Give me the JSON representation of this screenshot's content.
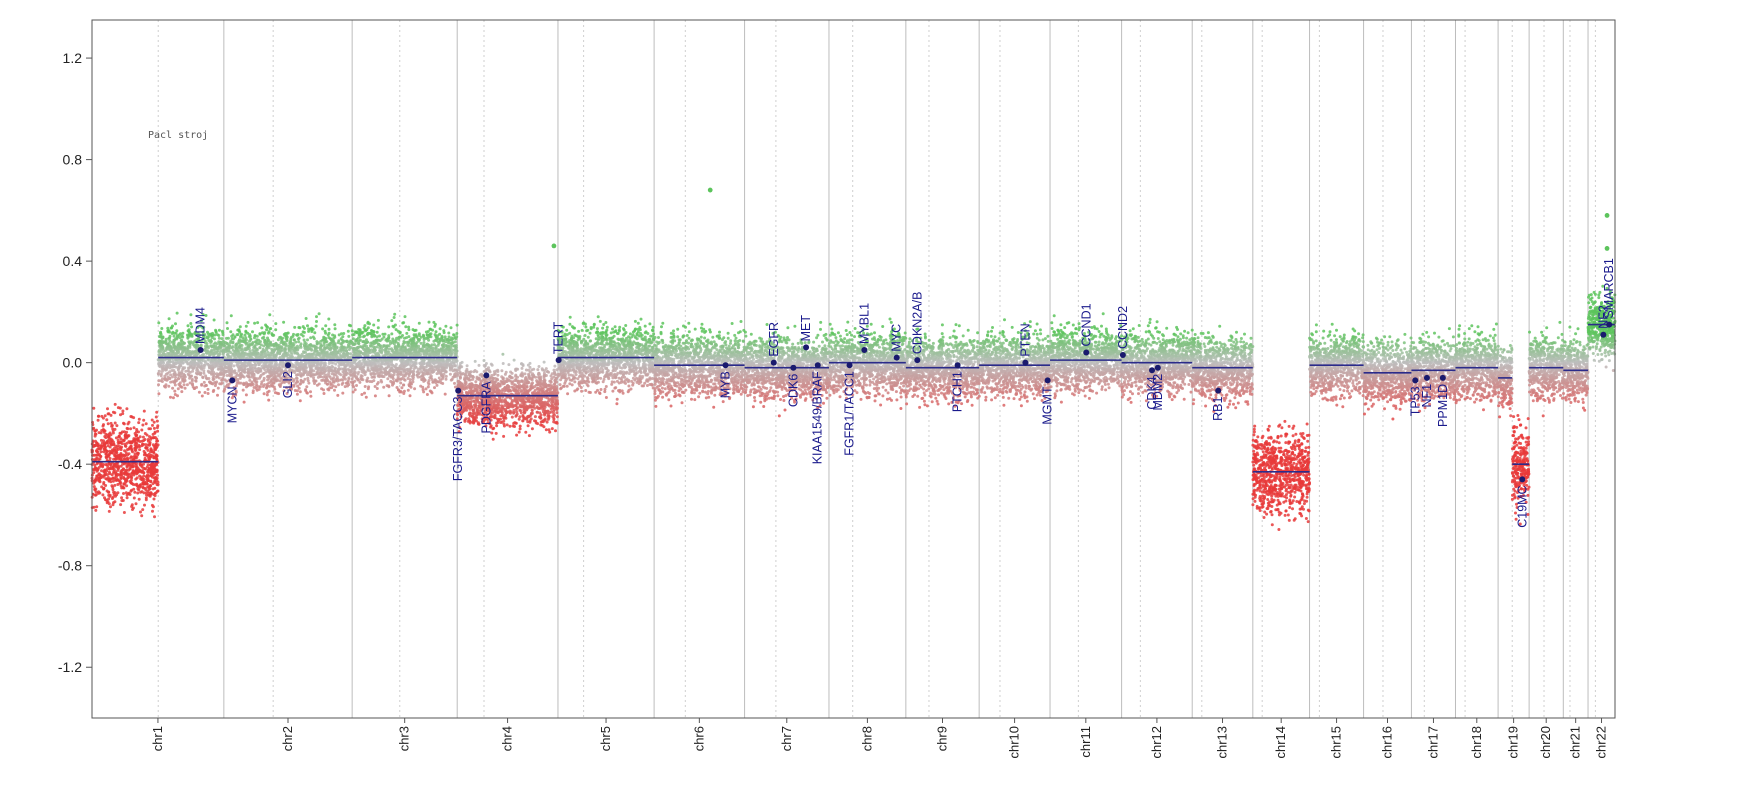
{
  "chart_data": {
    "type": "scatter",
    "title": "",
    "xlabel": "",
    "ylabel": "",
    "ylim": [
      -1.4,
      1.35
    ],
    "y_ticks": [
      1.2,
      0.8,
      0.4,
      0.0,
      -0.4,
      -0.8,
      -1.2
    ],
    "y_tick_labels": [
      "1.2",
      "0.8",
      "0.4",
      "0.0",
      "-0.4",
      "-0.8",
      "-1.2"
    ],
    "grid": false,
    "annotation": "Pacl stroj",
    "colors": {
      "gain": "#5cc45c",
      "loss": "#e83a3a",
      "neutral": "#bdbdbd",
      "segment": "#2b2b8a",
      "gene": "#1a1a6e"
    },
    "chromosomes": [
      {
        "name": "chr1",
        "start": 0.0,
        "end": 248.9,
        "centromere": 125.0,
        "segments": [
          {
            "from": 0,
            "to": 125,
            "value": -0.39
          },
          {
            "from": 125,
            "to": 248.9,
            "value": 0.02
          }
        ]
      },
      {
        "name": "chr2",
        "start": 248.9,
        "end": 491.1,
        "centromere": 342.0,
        "segments": [
          {
            "from": 248.9,
            "to": 491.1,
            "value": 0.01
          }
        ]
      },
      {
        "name": "chr3",
        "start": 491.1,
        "end": 689.4,
        "centromere": 581.0,
        "segments": [
          {
            "from": 491.1,
            "to": 689.4,
            "value": 0.02
          }
        ]
      },
      {
        "name": "chr4",
        "start": 689.4,
        "end": 879.6,
        "centromere": 740.0,
        "segments": [
          {
            "from": 689.4,
            "to": 879.6,
            "value": -0.13
          }
        ]
      },
      {
        "name": "chr5",
        "start": 879.6,
        "end": 1061.1,
        "centromere": 928.0,
        "segments": [
          {
            "from": 879.6,
            "to": 1061.1,
            "value": 0.02
          }
        ]
      },
      {
        "name": "chr6",
        "start": 1061.1,
        "end": 1231.9,
        "centromere": 1120.0,
        "segments": [
          {
            "from": 1061.1,
            "to": 1231.9,
            "value": -0.01
          }
        ]
      },
      {
        "name": "chr7",
        "start": 1231.9,
        "end": 1391.2,
        "centromere": 1291.0,
        "segments": [
          {
            "from": 1231.9,
            "to": 1391.2,
            "value": -0.02
          }
        ]
      },
      {
        "name": "chr8",
        "start": 1391.2,
        "end": 1536.3,
        "centromere": 1436.0,
        "segments": [
          {
            "from": 1391.2,
            "to": 1536.3,
            "value": 0.0
          }
        ]
      },
      {
        "name": "chr9",
        "start": 1536.3,
        "end": 1674.7,
        "centromere": 1580.0,
        "segments": [
          {
            "from": 1536.3,
            "to": 1674.7,
            "value": -0.02
          }
        ]
      },
      {
        "name": "chr10",
        "start": 1674.7,
        "end": 1808.5,
        "centromere": 1714.0,
        "segments": [
          {
            "from": 1674.7,
            "to": 1808.5,
            "value": -0.01
          }
        ]
      },
      {
        "name": "chr11",
        "start": 1808.5,
        "end": 1943.6,
        "centromere": 1862.0,
        "segments": [
          {
            "from": 1808.5,
            "to": 1943.6,
            "value": 0.01
          }
        ]
      },
      {
        "name": "chr12",
        "start": 1943.6,
        "end": 2076.9,
        "centromere": 1979.0,
        "segments": [
          {
            "from": 1943.6,
            "to": 2076.9,
            "value": 0.0
          }
        ]
      },
      {
        "name": "chr13",
        "start": 2076.9,
        "end": 2191.3,
        "centromere": 2095.0,
        "segments": [
          {
            "from": 2076.9,
            "to": 2191.3,
            "value": -0.02
          }
        ]
      },
      {
        "name": "chr14",
        "start": 2191.3,
        "end": 2298.4,
        "centromere": 2209.0,
        "segments": [
          {
            "from": 2191.3,
            "to": 2298.4,
            "value": -0.43
          }
        ]
      },
      {
        "name": "chr15",
        "start": 2298.4,
        "end": 2400.4,
        "centromere": 2317.0,
        "segments": [
          {
            "from": 2298.4,
            "to": 2400.4,
            "value": -0.01
          }
        ]
      },
      {
        "name": "chr16",
        "start": 2400.4,
        "end": 2490.7,
        "centromere": 2437.0,
        "segments": [
          {
            "from": 2400.4,
            "to": 2490.7,
            "value": -0.04
          }
        ]
      },
      {
        "name": "chr17",
        "start": 2490.7,
        "end": 2573.9,
        "centromere": 2515.0,
        "segments": [
          {
            "from": 2490.7,
            "to": 2573.9,
            "value": -0.03
          }
        ]
      },
      {
        "name": "chr18",
        "start": 2573.9,
        "end": 2654.3,
        "centromere": 2592.0,
        "segments": [
          {
            "from": 2573.9,
            "to": 2654.3,
            "value": -0.02
          }
        ]
      },
      {
        "name": "chr19",
        "start": 2654.3,
        "end": 2712.9,
        "centromere": 2681.0,
        "segments": [
          {
            "from": 2654.3,
            "to": 2681,
            "value": -0.06
          },
          {
            "from": 2681,
            "to": 2712.9,
            "value": -0.4
          }
        ]
      },
      {
        "name": "chr20",
        "start": 2712.9,
        "end": 2777.4,
        "centromere": 2741.0,
        "segments": [
          {
            "from": 2712.9,
            "to": 2777.4,
            "value": -0.02
          }
        ]
      },
      {
        "name": "chr21",
        "start": 2777.4,
        "end": 2824.1,
        "centromere": 2790.0,
        "segments": [
          {
            "from": 2777.4,
            "to": 2824.1,
            "value": -0.03
          }
        ]
      },
      {
        "name": "chr22",
        "start": 2824.1,
        "end": 2875.0,
        "centromere": 2838.0,
        "segments": [
          {
            "from": 2824.1,
            "to": 2875.0,
            "value": 0.15
          }
        ]
      }
    ],
    "genes": [
      {
        "name": "MDM4",
        "pos": 205.0,
        "value": 0.05
      },
      {
        "name": "MYCN",
        "pos": 264.8,
        "value": -0.07
      },
      {
        "name": "GLI2",
        "pos": 370.0,
        "value": -0.01
      },
      {
        "name": "FGFR3/TACC3",
        "pos": 691.3,
        "value": -0.11
      },
      {
        "name": "PDGFRA",
        "pos": 744.5,
        "value": -0.05
      },
      {
        "name": "TERT",
        "pos": 880.9,
        "value": 0.01
      },
      {
        "name": "MYB",
        "pos": 1196.0,
        "value": -0.01
      },
      {
        "name": "EGFR",
        "pos": 1287.0,
        "value": 0.0
      },
      {
        "name": "CDK6",
        "pos": 1324.0,
        "value": -0.02
      },
      {
        "name": "MET",
        "pos": 1348.0,
        "value": 0.06
      },
      {
        "name": "KIAA1549/BRAF",
        "pos": 1370.0,
        "value": -0.01
      },
      {
        "name": "FGFR1/TACC1",
        "pos": 1430.0,
        "value": -0.01
      },
      {
        "name": "MYBL1",
        "pos": 1458.0,
        "value": 0.05
      },
      {
        "name": "MYC",
        "pos": 1519.0,
        "value": 0.02
      },
      {
        "name": "CDKN2A/B",
        "pos": 1558.0,
        "value": 0.01
      },
      {
        "name": "PTCH1",
        "pos": 1634.0,
        "value": -0.01
      },
      {
        "name": "PTEN",
        "pos": 1762.0,
        "value": 0.0
      },
      {
        "name": "MGMT",
        "pos": 1804.0,
        "value": -0.07
      },
      {
        "name": "CCND1",
        "pos": 1877.0,
        "value": 0.04
      },
      {
        "name": "CCND2",
        "pos": 1946.0,
        "value": 0.03
      },
      {
        "name": "CDK4",
        "pos": 2001.0,
        "value": -0.03
      },
      {
        "name": "MDM2",
        "pos": 2012.0,
        "value": -0.02
      },
      {
        "name": "RB1",
        "pos": 2126.0,
        "value": -0.11
      },
      {
        "name": "TP53",
        "pos": 2498.0,
        "value": -0.07
      },
      {
        "name": "NF1",
        "pos": 2520.0,
        "value": -0.06
      },
      {
        "name": "PPM1D",
        "pos": 2550.0,
        "value": -0.06
      },
      {
        "name": "C19MC",
        "pos": 2700.0,
        "value": -0.46
      },
      {
        "name": "NF2",
        "pos": 2853.0,
        "value": 0.11
      },
      {
        "name": "SMARCB1",
        "pos": 2864.0,
        "value": 0.15
      }
    ],
    "outliers": [
      {
        "pos": 1167.0,
        "value": 0.68
      },
      {
        "pos": 872.0,
        "value": 0.46
      },
      {
        "pos": 2860.0,
        "value": 0.58
      },
      {
        "pos": 2860.0,
        "value": 0.45
      }
    ]
  }
}
